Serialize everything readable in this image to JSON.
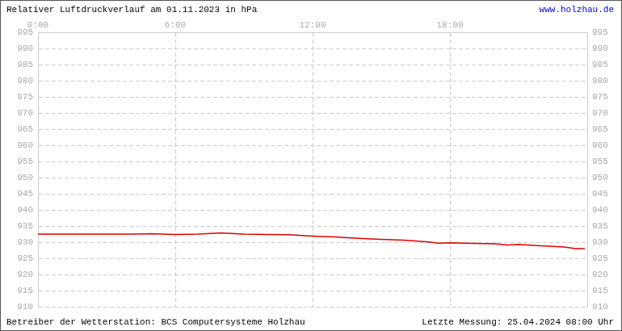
{
  "chart_data": {
    "type": "line",
    "title": "Relativer Luftdruckverlauf am 01.11.2023 in hPa",
    "annotations": [
      "www.holzhau.de",
      "Betreiber der Wetterstation: BCS Computersysteme Holzhau",
      "Letzte Messung: 25.04.2024 08:00 Uhr"
    ],
    "x": [
      0,
      1,
      2,
      3,
      4,
      5,
      6,
      7,
      8,
      9,
      10,
      11,
      12,
      13,
      14,
      15,
      16,
      17,
      17.5,
      18,
      19,
      20,
      20.5,
      21,
      22,
      22.5,
      23,
      23.5,
      23.9
    ],
    "series": [
      {
        "name": "Luftdruck",
        "color": "#dd0000",
        "marker": "none",
        "values": [
          932.5,
          932.5,
          932.5,
          932.5,
          932.5,
          932.6,
          932.4,
          932.5,
          932.9,
          932.5,
          932.4,
          932.3,
          931.9,
          931.6,
          931.2,
          930.9,
          930.6,
          930.1,
          929.7,
          929.8,
          929.6,
          929.5,
          929.1,
          929.3,
          928.9,
          928.7,
          928.5,
          928.0,
          928.0
        ]
      }
    ],
    "xlim": [
      0,
      24
    ],
    "xticks": [
      {
        "value": 0,
        "label": "0:00"
      },
      {
        "value": 6,
        "label": "6:00"
      },
      {
        "value": 12,
        "label": "12:00"
      },
      {
        "value": 18,
        "label": "18:00"
      }
    ],
    "ylim": [
      910,
      995
    ],
    "yticks": [
      910,
      915,
      920,
      925,
      930,
      935,
      940,
      945,
      950,
      955,
      960,
      965,
      970,
      975,
      980,
      985,
      990,
      995
    ],
    "grid": true
  }
}
